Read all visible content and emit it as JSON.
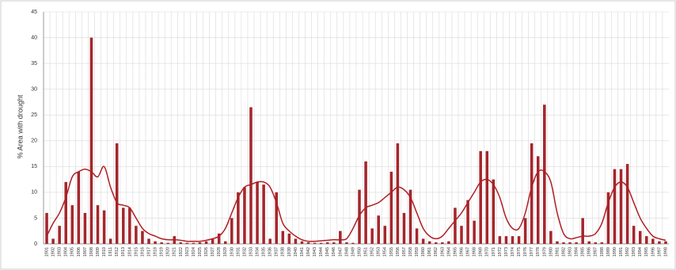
{
  "chart_data": {
    "type": "bar",
    "y_label": "% Area with drought",
    "categories": [
      "1901",
      "1902",
      "1903",
      "1904",
      "1905",
      "1906",
      "1907",
      "1908",
      "1909",
      "1910",
      "1911",
      "1912",
      "1913",
      "1914",
      "1915",
      "1916",
      "1917",
      "1918",
      "1919",
      "1920",
      "1921",
      "1922",
      "1923",
      "1924",
      "1925",
      "1926",
      "1927",
      "1928",
      "1929",
      "1930",
      "1931",
      "1932",
      "1933",
      "1934",
      "1935",
      "1936",
      "1937",
      "1938",
      "1939",
      "1940",
      "1941",
      "1942",
      "1943",
      "1944",
      "1945",
      "1946",
      "1947",
      "1948",
      "1949",
      "1950",
      "1951",
      "1952",
      "1953",
      "1954",
      "1955",
      "1956",
      "1957",
      "1958",
      "1959",
      "1960",
      "1961",
      "1962",
      "1963",
      "1964",
      "1965",
      "1966",
      "1967",
      "1968",
      "1969",
      "1970",
      "1971",
      "1972",
      "1973",
      "1974",
      "1975",
      "1976",
      "1977",
      "1978",
      "1979",
      "1980",
      "1981",
      "1982",
      "1983",
      "1984",
      "1985",
      "1986",
      "1987",
      "1988",
      "1989",
      "1990",
      "1991",
      "1992",
      "1993",
      "1994",
      "1995",
      "1996",
      "1997",
      "1998"
    ],
    "series": [
      {
        "color": "#a4262c",
        "values": [
          6,
          1,
          3.5,
          12,
          7.5,
          14,
          6,
          40,
          7.5,
          6.5,
          1,
          19.5,
          7,
          7,
          3.5,
          2.5,
          1,
          0.5,
          0.3,
          0.2,
          1.5,
          0.3,
          0.2,
          0.2,
          0.3,
          0.5,
          1,
          2,
          0.5,
          5,
          10,
          11,
          26.5,
          12,
          11.5,
          1,
          10,
          2.5,
          2,
          1,
          0.5,
          0.3,
          0.2,
          0.2,
          0.3,
          0.3,
          2.5,
          0.3,
          0.2,
          10.5,
          16,
          3,
          5.5,
          3.5,
          14,
          19.5,
          6,
          10.5,
          3,
          1,
          0.5,
          0.3,
          0.3,
          0.5,
          7,
          3.5,
          8.5,
          4.5,
          18,
          18,
          12.5,
          1.5,
          1.5,
          1.5,
          1.5,
          5,
          19.5,
          17,
          27,
          2.5,
          0.5,
          0.3,
          0.3,
          0.3,
          5,
          0.5,
          0.3,
          0.3,
          10,
          14.5,
          14.5,
          15.5,
          3.5,
          2.5,
          1.5,
          1,
          0.5,
          0.5
        ]
      },
      {
        "type": "line",
        "color": "#b01e23",
        "values": [
          1.5,
          4,
          6,
          9,
          13,
          14,
          14.5,
          14,
          13,
          15,
          11,
          8,
          7.5,
          7,
          5,
          3,
          2,
          1.5,
          1,
          0.8,
          0.8,
          0.7,
          0.5,
          0.5,
          0.5,
          0.7,
          1,
          1.5,
          3,
          6,
          9,
          11,
          11.5,
          12,
          12,
          11,
          8,
          4,
          2.5,
          1.5,
          0.8,
          0.5,
          0.5,
          0.6,
          0.7,
          0.8,
          0.8,
          1,
          3,
          5.5,
          7,
          7.5,
          8,
          9,
          10,
          11,
          10.5,
          9,
          6,
          3,
          1.5,
          1,
          1.5,
          3,
          4.5,
          6,
          8,
          10,
          12,
          12.5,
          11.5,
          9,
          5,
          3,
          3,
          6,
          11,
          14,
          14,
          12,
          6,
          2,
          1,
          1.2,
          1.5,
          1.5,
          2,
          4,
          8,
          11,
          12,
          11,
          8,
          5,
          3,
          1.5,
          1,
          0.7
        ]
      }
    ],
    "ylim": [
      0,
      45
    ],
    "yticks": [
      0,
      5,
      10,
      15,
      20,
      25,
      30,
      35,
      40,
      45
    ],
    "grid": true
  }
}
